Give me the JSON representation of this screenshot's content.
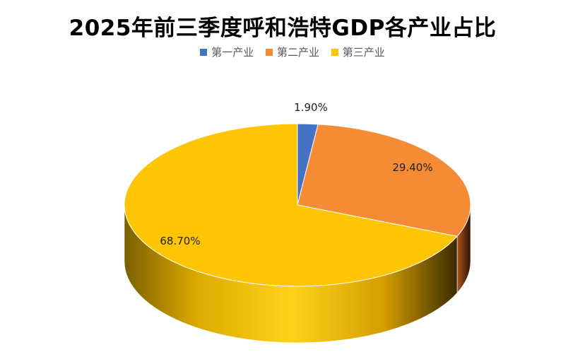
{
  "chart_data": {
    "type": "pie",
    "title": "2025年前三季度呼和浩特GDP各产业占比",
    "categories": [
      "第一产业",
      "第二产业",
      "第三产业"
    ],
    "values": [
      1.9,
      29.4,
      68.7
    ],
    "labels": [
      "1.90%",
      "29.40%",
      "68.70%"
    ],
    "colors": [
      "#4472C4",
      "#F58B35",
      "#FDC503"
    ],
    "style": "3d",
    "legend_position": "top"
  }
}
